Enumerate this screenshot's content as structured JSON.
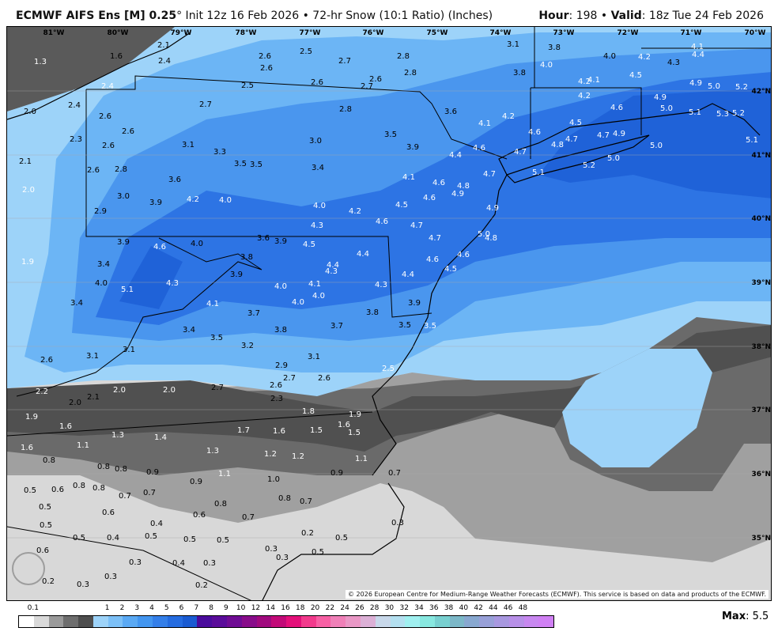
{
  "header": {
    "model": "ECMWF AIFS Ens [M] 0.25",
    "deg": "°",
    "init": " Init 12z 16 Feb 2026 • 72-hr Snow (10:1 Ratio) (Inches)",
    "hour_label": "Hour",
    "hour": ": 198 • ",
    "valid_label": "Valid",
    "valid": ": 18z Tue 24 Feb 2026"
  },
  "longitudes": [
    "81°W",
    "80°W",
    "79°W",
    "78°W",
    "77°W",
    "76°W",
    "75°W",
    "74°W",
    "73°W",
    "72°W",
    "71°W",
    "70°W"
  ],
  "latitudes": [
    "42°N",
    "41°N",
    "40°N",
    "39°N",
    "38°N",
    "37°N",
    "36°N",
    "35°N"
  ],
  "snow_values": [
    "1.3",
    "1.6",
    "2.1",
    "2.4",
    "2.6",
    "2.5",
    "2.7",
    "2.8",
    "3.1",
    "3.8",
    "4.0",
    "4.0",
    "4.2",
    "4.1",
    "4.4",
    "4.3",
    "2.6",
    "2.8",
    "3.8",
    "4.2",
    "4.1",
    "4.5",
    "4.9",
    "5.0",
    "5.2",
    "2.4",
    "2.5",
    "2.6",
    "2.7",
    "2.6",
    "4.2",
    "4.9",
    "2.0",
    "2.4",
    "2.6",
    "2.7",
    "2.8",
    "3.6",
    "4.6",
    "5.0",
    "5.1",
    "5.3",
    "5.2",
    "4.1",
    "4.2",
    "4.6",
    "4.5",
    "2.6",
    "2.3",
    "3.0",
    "3.5",
    "3.1",
    "2.6",
    "3.3",
    "3.9",
    "4.6",
    "4.7",
    "4.8",
    "4.7",
    "4.7",
    "4.9",
    "5.0",
    "5.1",
    "2.1",
    "3.5",
    "3.5",
    "3.4",
    "4.4",
    "5.1",
    "5.2",
    "5.0",
    "2.6",
    "2.8",
    "3.6",
    "4.1",
    "4.6",
    "4.8",
    "4.9",
    "4.7",
    "2.0",
    "3.0",
    "4.2",
    "4.0",
    "3.9",
    "4.0",
    "4.6",
    "4.5",
    "4.2",
    "2.9",
    "4.9",
    "4.3",
    "4.6",
    "4.7",
    "5.0",
    "4.8",
    "3.6",
    "3.9",
    "3.9",
    "4.6",
    "4.0",
    "4.5",
    "4.7",
    "4.4",
    "3.8",
    "4.6",
    "4.6",
    "1.9",
    "3.4",
    "4.4",
    "4.3",
    "4.5",
    "3.9",
    "4.4",
    "4.0",
    "4.3",
    "4.0",
    "4.1",
    "4.3",
    "5.1",
    "4.0",
    "4.0",
    "3.4",
    "4.1",
    "3.9",
    "3.7",
    "3.8",
    "3.4",
    "3.8",
    "3.7",
    "3.5",
    "3.5",
    "3.5",
    "3.2",
    "3.1",
    "3.1",
    "3.1",
    "2.6",
    "2.9",
    "2.5",
    "2.7",
    "2.6",
    "2.2",
    "2.0",
    "2.0",
    "2.7",
    "2.6",
    "2.1",
    "2.0",
    "2.3",
    "1.9",
    "1.8",
    "1.9",
    "1.6",
    "1.6",
    "1.7",
    "1.6",
    "1.5",
    "1.5",
    "1.3",
    "1.4",
    "1.6",
    "1.1",
    "1.3",
    "1.2",
    "1.2",
    "1.1",
    "0.8",
    "0.8",
    "0.8",
    "0.9",
    "1.1",
    "0.9",
    "0.7",
    "1.0",
    "0.9",
    "0.8",
    "0.5",
    "0.6",
    "0.8",
    "0.7",
    "0.7",
    "0.8",
    "0.7",
    "0.8",
    "0.5",
    "0.6",
    "0.6",
    "0.7",
    "0.3",
    "0.5",
    "0.4",
    "0.5",
    "0.4",
    "0.5",
    "0.5",
    "0.5",
    "0.2",
    "0.5",
    "0.6",
    "0.3",
    "0.5",
    "0.3",
    "0.3",
    "0.4",
    "0.3",
    "0.3",
    "0.2",
    "0.3",
    "0.2"
  ],
  "credit": "© 2026 European Centre for Medium-Range Weather Forecasts (ECMWF). This service is based on data and products of the ECMWF.",
  "watermark": "WeatherBELL",
  "colorbar": {
    "ticks": [
      "0.1",
      "1",
      "2",
      "3",
      "4",
      "5",
      "6",
      "7",
      "8",
      "9",
      "10",
      "12",
      "14",
      "16",
      "18",
      "20",
      "22",
      "24",
      "26",
      "28",
      "30",
      "32",
      "34",
      "36",
      "38",
      "40",
      "42",
      "44",
      "46",
      "48"
    ],
    "colors": [
      "#ffffff",
      "#d9d9d9",
      "#9a9a9a",
      "#6e6e6e",
      "#4e4e4e",
      "#9dd3f9",
      "#7cc0f7",
      "#5aa9f4",
      "#4396f0",
      "#347fe9",
      "#256ce0",
      "#1a5bd2",
      "#4a0c9c",
      "#5a0c9a",
      "#6f0c94",
      "#880c8a",
      "#a00a7e",
      "#c20a78",
      "#e4107a",
      "#f23a8c",
      "#f760a4",
      "#f080b8",
      "#ea98c6",
      "#dcb0d6",
      "#c8d8ea",
      "#b4e0f0",
      "#a0f0f0",
      "#88e8e0",
      "#78d0d0",
      "#7cb8c8",
      "#88a8d0",
      "#98a0d8",
      "#a898e0",
      "#b890e8",
      "#c888f0",
      "#d080f4"
    ],
    "max_label": "Max",
    "max_value": ": 5.5"
  }
}
